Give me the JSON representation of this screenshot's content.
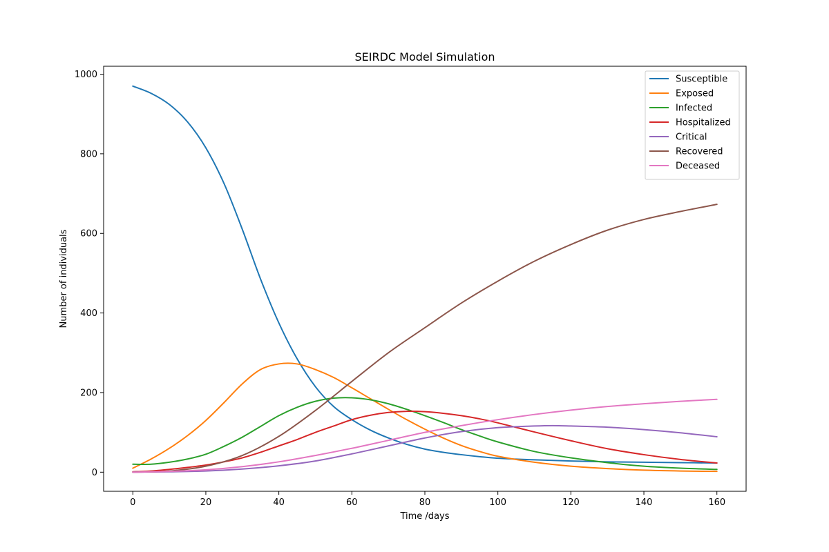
{
  "chart_data": {
    "type": "line",
    "title": "SEIRDC Model Simulation",
    "xlabel": "Time /days",
    "ylabel": "Number of individuals",
    "xlim": [
      -8,
      168
    ],
    "ylim": [
      -48,
      1020
    ],
    "xticks": [
      0,
      20,
      40,
      60,
      80,
      100,
      120,
      140,
      160
    ],
    "yticks": [
      0,
      200,
      400,
      600,
      800,
      1000
    ],
    "grid": false,
    "legend_position": "top-right",
    "series": [
      {
        "name": "Susceptible",
        "color": "#1f77b4",
        "x": [
          0,
          5,
          10,
          15,
          20,
          25,
          30,
          35,
          40,
          45,
          50,
          55,
          60,
          65,
          70,
          75,
          80,
          85,
          90,
          95,
          100,
          110,
          120,
          130,
          140,
          150,
          160
        ],
        "values": [
          970,
          952,
          924,
          880,
          815,
          725,
          610,
          485,
          375,
          285,
          215,
          165,
          132,
          106,
          86,
          70,
          58,
          50,
          44,
          39,
          35,
          31,
          28,
          26,
          25,
          24,
          23
        ]
      },
      {
        "name": "Exposed",
        "color": "#ff7f0e",
        "x": [
          0,
          5,
          10,
          15,
          20,
          25,
          30,
          35,
          40,
          45,
          50,
          55,
          60,
          65,
          70,
          75,
          80,
          85,
          90,
          95,
          100,
          110,
          120,
          130,
          140,
          150,
          160
        ],
        "values": [
          10,
          33,
          60,
          92,
          130,
          175,
          222,
          258,
          272,
          272,
          258,
          238,
          212,
          185,
          158,
          132,
          108,
          86,
          67,
          52,
          40,
          25,
          15,
          9,
          5,
          3,
          2
        ]
      },
      {
        "name": "Infected",
        "color": "#2ca02c",
        "x": [
          0,
          5,
          10,
          15,
          20,
          25,
          30,
          35,
          40,
          45,
          50,
          55,
          60,
          65,
          70,
          75,
          80,
          85,
          90,
          95,
          100,
          110,
          120,
          130,
          140,
          150,
          160
        ],
        "values": [
          20,
          20,
          25,
          33,
          45,
          65,
          88,
          115,
          142,
          163,
          178,
          186,
          187,
          182,
          172,
          158,
          142,
          125,
          107,
          91,
          76,
          52,
          36,
          24,
          15,
          10,
          7
        ]
      },
      {
        "name": "Hospitalized",
        "color": "#d62728",
        "x": [
          0,
          5,
          10,
          15,
          20,
          25,
          30,
          35,
          40,
          45,
          50,
          55,
          60,
          65,
          70,
          75,
          80,
          85,
          90,
          95,
          100,
          110,
          120,
          130,
          140,
          150,
          160
        ],
        "values": [
          1,
          3,
          7,
          12,
          18,
          26,
          36,
          50,
          66,
          82,
          100,
          116,
          132,
          143,
          150,
          153,
          152,
          148,
          142,
          134,
          124,
          101,
          79,
          59,
          44,
          32,
          23
        ]
      },
      {
        "name": "Critical",
        "color": "#9467bd",
        "x": [
          0,
          10,
          20,
          30,
          40,
          50,
          60,
          70,
          80,
          90,
          100,
          110,
          115,
          120,
          130,
          140,
          150,
          160
        ],
        "values": [
          0,
          1,
          3,
          8,
          16,
          28,
          46,
          66,
          86,
          102,
          112,
          116,
          117,
          116,
          113,
          107,
          99,
          89
        ]
      },
      {
        "name": "Recovered",
        "color": "#8c564b",
        "x": [
          0,
          10,
          20,
          30,
          40,
          50,
          60,
          70,
          80,
          90,
          100,
          110,
          120,
          130,
          140,
          150,
          160
        ],
        "values": [
          0,
          3,
          15,
          42,
          90,
          155,
          228,
          300,
          363,
          425,
          480,
          530,
          572,
          608,
          635,
          655,
          673
        ]
      },
      {
        "name": "Deceased",
        "color": "#e377c2",
        "x": [
          0,
          10,
          20,
          30,
          40,
          50,
          60,
          70,
          80,
          90,
          100,
          110,
          120,
          130,
          140,
          150,
          160
        ],
        "values": [
          0,
          2,
          6,
          14,
          26,
          42,
          60,
          80,
          100,
          117,
          132,
          145,
          156,
          165,
          172,
          178,
          183
        ]
      }
    ]
  }
}
